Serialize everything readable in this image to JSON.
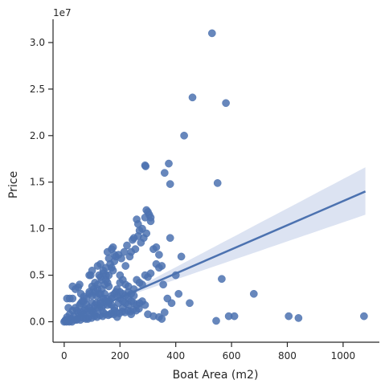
{
  "chart_data": {
    "type": "scatter",
    "title": "",
    "xlabel": "Boat Area (m2)",
    "ylabel": "Price",
    "y_offset_text": "1e7",
    "x_ticks": [
      0,
      200,
      400,
      600,
      800,
      1000
    ],
    "x_tick_labels": [
      "0",
      "200",
      "400",
      "600",
      "800",
      "1000"
    ],
    "y_ticks": [
      0,
      0.5,
      1.0,
      1.5,
      2.0,
      2.5,
      3.0
    ],
    "y_tick_labels": [
      "0.0",
      "0.5",
      "1.0",
      "1.5",
      "2.0",
      "2.5",
      "3.0"
    ],
    "xlim": [
      -40,
      1130
    ],
    "ylim": [
      -0.22,
      3.25
    ],
    "y_units": "1e7",
    "grid": false,
    "legend": "none",
    "colors": {
      "points": "#4c72b0",
      "line": "#4c72b0",
      "band": "#cdd7ec",
      "axis": "#262626"
    },
    "regression": {
      "x_range": [
        0,
        1080
      ],
      "y_at_start": 0.0,
      "y_at_end": 1.4,
      "ci_upper_at_end": 1.66,
      "ci_lower_at_end": 1.15
    },
    "series": [
      {
        "values": [
          [
            5,
            0.02
          ],
          [
            10,
            0.05
          ],
          [
            15,
            0.01
          ],
          [
            20,
            0.08
          ],
          [
            25,
            0.03
          ],
          [
            30,
            0.12
          ],
          [
            35,
            0.06
          ],
          [
            40,
            0.15
          ],
          [
            45,
            0.02
          ],
          [
            50,
            0.1
          ],
          [
            55,
            0.18
          ],
          [
            60,
            0.05
          ],
          [
            65,
            0.22
          ],
          [
            70,
            0.08
          ],
          [
            75,
            0.14
          ],
          [
            80,
            0.25
          ],
          [
            85,
            0.03
          ],
          [
            90,
            0.3
          ],
          [
            95,
            0.12
          ],
          [
            100,
            0.2
          ],
          [
            105,
            0.35
          ],
          [
            110,
            0.08
          ],
          [
            115,
            0.28
          ],
          [
            120,
            0.4
          ],
          [
            125,
            0.15
          ],
          [
            130,
            0.22
          ],
          [
            135,
            0.45
          ],
          [
            140,
            0.1
          ],
          [
            145,
            0.3
          ],
          [
            150,
            0.5
          ],
          [
            155,
            0.18
          ],
          [
            160,
            0.38
          ],
          [
            165,
            0.08
          ],
          [
            170,
            0.25
          ],
          [
            175,
            0.55
          ],
          [
            180,
            0.12
          ],
          [
            185,
            0.32
          ],
          [
            190,
            0.05
          ],
          [
            195,
            0.2
          ],
          [
            200,
            0.42
          ],
          [
            210,
            0.15
          ],
          [
            220,
            0.6
          ],
          [
            230,
            0.25
          ],
          [
            240,
            0.08
          ],
          [
            250,
            0.35
          ],
          [
            30,
            0.25
          ],
          [
            40,
            0.35
          ],
          [
            55,
            0.4
          ],
          [
            90,
            0.5
          ],
          [
            95,
            0.5
          ],
          [
            100,
            0.55
          ],
          [
            120,
            0.6
          ],
          [
            130,
            0.62
          ],
          [
            140,
            0.55
          ],
          [
            150,
            0.45
          ],
          [
            160,
            0.5
          ],
          [
            170,
            0.58
          ],
          [
            180,
            0.65
          ],
          [
            110,
            0.32
          ],
          [
            100,
            0.28
          ],
          [
            125,
            0.3
          ],
          [
            135,
            0.35
          ],
          [
            145,
            0.4
          ],
          [
            155,
            0.42
          ],
          [
            60,
            0.2
          ],
          [
            70,
            0.22
          ],
          [
            80,
            0.18
          ],
          [
            45,
            0.12
          ],
          [
            20,
            0.25
          ],
          [
            15,
            0.15
          ],
          [
            0,
            0.0
          ],
          [
            3,
            0.01
          ],
          [
            8,
            0.0
          ],
          [
            12,
            0.02
          ],
          [
            18,
            0.0
          ],
          [
            22,
            0.01
          ],
          [
            28,
            0.0
          ],
          [
            38,
            0.02
          ],
          [
            48,
            0.03
          ],
          [
            58,
            0.02
          ],
          [
            68,
            0.04
          ],
          [
            78,
            0.03
          ],
          [
            88,
            0.05
          ],
          [
            98,
            0.04
          ],
          [
            108,
            0.06
          ],
          [
            118,
            0.05
          ],
          [
            128,
            0.07
          ],
          [
            138,
            0.06
          ],
          [
            148,
            0.08
          ],
          [
            158,
            0.07
          ],
          [
            168,
            0.09
          ],
          [
            178,
            0.08
          ],
          [
            188,
            0.1
          ],
          [
            198,
            0.09
          ],
          [
            208,
            0.11
          ],
          [
            218,
            0.1
          ],
          [
            228,
            0.12
          ],
          [
            238,
            0.11
          ],
          [
            248,
            0.13
          ],
          [
            258,
            0.12
          ],
          [
            268,
            0.14
          ],
          [
            10,
            0.25
          ],
          [
            30,
            0.38
          ],
          [
            105,
            0.1
          ],
          [
            115,
            0.2
          ],
          [
            125,
            0.5
          ],
          [
            135,
            0.15
          ],
          [
            185,
            0.7
          ],
          [
            195,
            0.72
          ],
          [
            205,
            0.68
          ],
          [
            215,
            0.75
          ],
          [
            225,
            0.82
          ],
          [
            235,
            0.7
          ],
          [
            245,
            0.88
          ],
          [
            255,
            0.78
          ],
          [
            265,
            0.92
          ],
          [
            275,
            0.85
          ],
          [
            285,
            0.9
          ],
          [
            295,
            0.95
          ],
          [
            260,
            1.1
          ],
          [
            265,
            1.05
          ],
          [
            270,
            0.98
          ],
          [
            280,
            1.0
          ],
          [
            290,
            1.12
          ],
          [
            295,
            1.2
          ],
          [
            300,
            1.18
          ],
          [
            305,
            1.15
          ],
          [
            310,
            1.08
          ],
          [
            290,
            1.68
          ],
          [
            292,
            1.67
          ],
          [
            360,
            1.6
          ],
          [
            375,
            1.7
          ],
          [
            380,
            1.48
          ],
          [
            310,
            1.12
          ],
          [
            250,
            0.9
          ],
          [
            240,
            0.75
          ],
          [
            155,
            0.75
          ],
          [
            160,
            0.68
          ],
          [
            165,
            0.62
          ],
          [
            170,
            0.78
          ],
          [
            175,
            0.8
          ],
          [
            180,
            0.72
          ],
          [
            130,
            0.48
          ],
          [
            140,
            0.52
          ],
          [
            150,
            0.58
          ],
          [
            200,
            0.5
          ],
          [
            210,
            0.45
          ],
          [
            220,
            0.4
          ],
          [
            230,
            0.38
          ],
          [
            240,
            0.3
          ],
          [
            250,
            0.28
          ],
          [
            260,
            0.45
          ],
          [
            270,
            0.42
          ],
          [
            280,
            0.4
          ],
          [
            290,
            0.5
          ],
          [
            300,
            0.48
          ],
          [
            310,
            0.52
          ],
          [
            320,
            0.78
          ],
          [
            330,
            0.8
          ],
          [
            340,
            0.72
          ],
          [
            350,
            0.6
          ],
          [
            330,
            0.62
          ],
          [
            340,
            0.58
          ],
          [
            355,
            0.4
          ],
          [
            370,
            0.25
          ],
          [
            380,
            0.9
          ],
          [
            400,
            0.5
          ],
          [
            410,
            0.3
          ],
          [
            420,
            0.7
          ],
          [
            385,
            0.2
          ],
          [
            360,
            0.1
          ],
          [
            340,
            0.05
          ],
          [
            430,
            2.0
          ],
          [
            460,
            2.41
          ],
          [
            530,
            3.1
          ],
          [
            580,
            2.35
          ],
          [
            550,
            1.49
          ],
          [
            565,
            0.46
          ],
          [
            450,
            0.2
          ],
          [
            545,
            0.01
          ],
          [
            590,
            0.06
          ],
          [
            610,
            0.06
          ],
          [
            680,
            0.3
          ],
          [
            805,
            0.06
          ],
          [
            840,
            0.04
          ],
          [
            1075,
            0.06
          ],
          [
            300,
            0.08
          ],
          [
            320,
            0.06
          ],
          [
            350,
            0.03
          ],
          [
            50,
            0.37
          ],
          [
            60,
            0.3
          ],
          [
            70,
            0.27
          ],
          [
            90,
            0.32
          ],
          [
            100,
            0.38
          ],
          [
            110,
            0.42
          ],
          [
            120,
            0.35
          ],
          [
            130,
            0.3
          ],
          [
            140,
            0.25
          ],
          [
            150,
            0.22
          ],
          [
            160,
            0.2
          ],
          [
            170,
            0.18
          ],
          [
            180,
            0.15
          ],
          [
            190,
            0.28
          ],
          [
            200,
            0.25
          ],
          [
            210,
            0.22
          ],
          [
            220,
            0.2
          ],
          [
            230,
            0.18
          ],
          [
            60,
            0.1
          ],
          [
            70,
            0.12
          ],
          [
            80,
            0.1
          ],
          [
            90,
            0.15
          ],
          [
            100,
            0.12
          ],
          [
            110,
            0.18
          ],
          [
            120,
            0.15
          ],
          [
            130,
            0.2
          ],
          [
            140,
            0.18
          ],
          [
            150,
            0.25
          ],
          [
            160,
            0.22
          ],
          [
            170,
            0.28
          ],
          [
            180,
            0.3
          ],
          [
            190,
            0.35
          ],
          [
            200,
            0.32
          ],
          [
            210,
            0.3
          ],
          [
            220,
            0.28
          ],
          [
            230,
            0.32
          ],
          [
            240,
            0.22
          ],
          [
            250,
            0.2
          ],
          [
            260,
            0.18
          ],
          [
            270,
            0.2
          ],
          [
            280,
            0.22
          ],
          [
            290,
            0.18
          ]
        ]
      }
    ]
  }
}
